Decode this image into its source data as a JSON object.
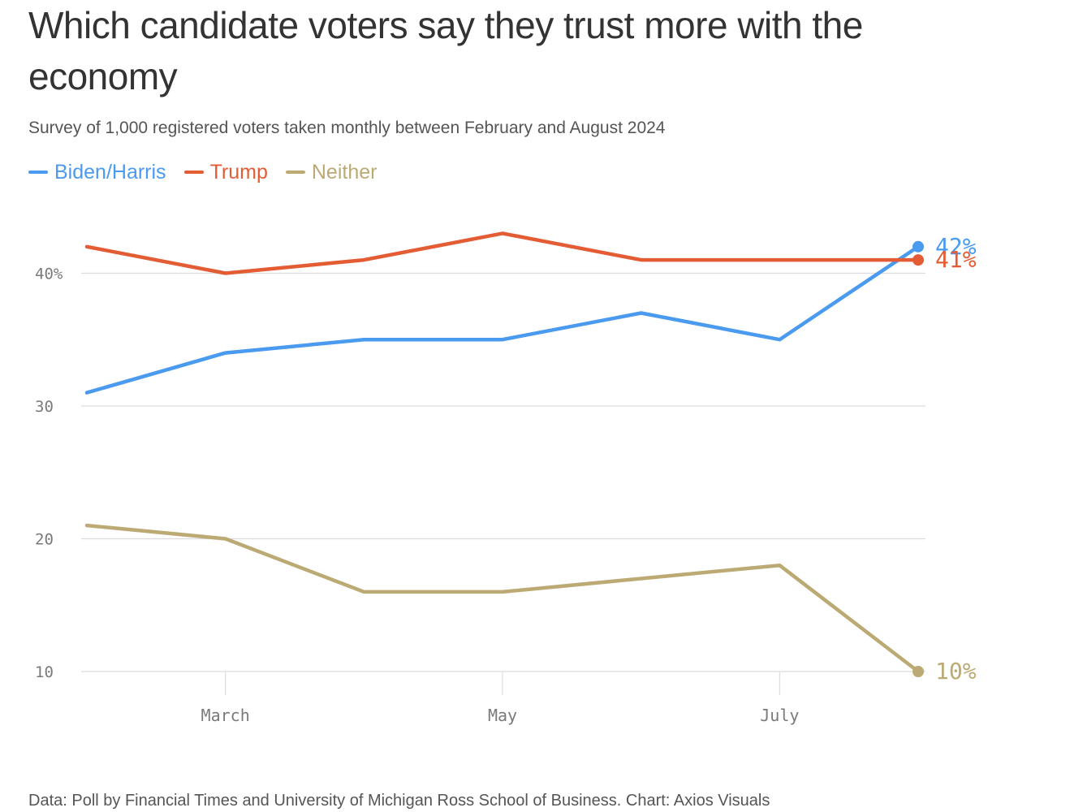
{
  "header": {
    "title": "Which candidate voters say they trust more with the economy",
    "subtitle": "Survey of 1,000 registered voters taken monthly between February and August 2024"
  },
  "footer": {
    "source": "Data: Poll by Financial Times and University of Michigan Ross School of Business. Chart: Axios Visuals"
  },
  "chart_data": {
    "type": "line",
    "x": [
      "2024-02",
      "2024-03",
      "2024-04",
      "2024-05",
      "2024-06",
      "2024-07",
      "2024-08"
    ],
    "x_tick_labels": [
      {
        "x": "2024-03",
        "label": "March"
      },
      {
        "x": "2024-05",
        "label": "May"
      },
      {
        "x": "2024-07",
        "label": "July"
      }
    ],
    "y_ticks": [
      {
        "value": 10,
        "label": "10"
      },
      {
        "value": 20,
        "label": "20"
      },
      {
        "value": 30,
        "label": "30"
      },
      {
        "value": 40,
        "label": "40%"
      }
    ],
    "ylim": [
      10,
      43
    ],
    "grid": true,
    "legend_position": "top-left",
    "series": [
      {
        "name": "Biden/Harris",
        "color": "#4a9af0",
        "values": [
          31,
          34,
          35,
          35,
          37,
          35,
          42
        ],
        "end_label": "42%"
      },
      {
        "name": "Trump",
        "color": "#e45c34",
        "values": [
          42,
          40,
          41,
          43,
          41,
          41,
          41
        ],
        "end_label": "41%"
      },
      {
        "name": "Neither",
        "color": "#bcaa74",
        "values": [
          21,
          20,
          16,
          16,
          17,
          18,
          10
        ],
        "end_label": "10%"
      }
    ]
  }
}
